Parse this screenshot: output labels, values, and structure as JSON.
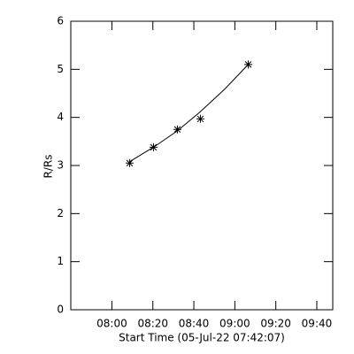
{
  "chart_data": {
    "type": "scatter",
    "x_label": "Start Time (05-Jul-22 07:42:07)",
    "y_label": "R/Rs",
    "x": [
      1591,
      2291,
      2991,
      3665,
      5065
    ],
    "values": [
      3.05,
      3.38,
      3.75,
      3.97,
      5.1
    ],
    "color": "#000000",
    "fit": {
      "x": [
        1591,
        2291,
        2991,
        3665,
        4365,
        5065
      ],
      "values": [
        3.08,
        3.38,
        3.72,
        4.12,
        4.58,
        5.1
      ]
    },
    "xlim": [
      -130,
      7540
    ],
    "xticks": [
      {
        "value": 1073,
        "label": "08:00"
      },
      {
        "value": 2273,
        "label": "08:20"
      },
      {
        "value": 3473,
        "label": "08:40"
      },
      {
        "value": 4673,
        "label": "09:00"
      },
      {
        "value": 5873,
        "label": "09:20"
      },
      {
        "value": 7073,
        "label": "09:40"
      }
    ],
    "ylim": [
      0,
      6
    ],
    "yticks": [
      0,
      1,
      2,
      3,
      4,
      5,
      6
    ]
  }
}
